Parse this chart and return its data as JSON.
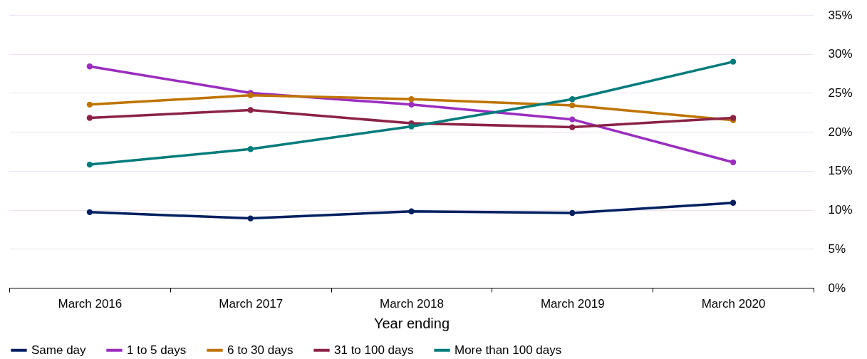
{
  "chart_data": {
    "type": "line",
    "xlabel": "Year ending",
    "categories": [
      "March 2016",
      "March 2017",
      "March 2018",
      "March 2019",
      "March 2020"
    ],
    "series": [
      {
        "name": "Same day",
        "color": "#002060",
        "values": [
          9.7,
          8.9,
          9.8,
          9.6,
          10.9
        ]
      },
      {
        "name": "1 to 5 days",
        "color": "#9b2dbf",
        "values": [
          28.4,
          25.0,
          23.5,
          21.6,
          16.1
        ]
      },
      {
        "name": "6 to 30 days",
        "color": "#bf7400",
        "values": [
          23.5,
          24.7,
          24.2,
          23.4,
          21.5
        ]
      },
      {
        "name": "31 to 100 days",
        "color": "#8b2346",
        "values": [
          21.8,
          22.8,
          21.1,
          20.6,
          21.8
        ]
      },
      {
        "name": "More than 100 days",
        "color": "#007b7b",
        "values": [
          15.8,
          17.8,
          20.7,
          24.2,
          29.0
        ]
      }
    ],
    "ylim": [
      0,
      35
    ],
    "yticks": [
      {
        "value": 0,
        "label": "0%"
      },
      {
        "value": 5,
        "label": "5%"
      },
      {
        "value": 10,
        "label": "10%"
      },
      {
        "value": 15,
        "label": "15%"
      },
      {
        "value": 20,
        "label": "20%"
      },
      {
        "value": 25,
        "label": "25%"
      },
      {
        "value": 30,
        "label": "30%"
      },
      {
        "value": 35,
        "label": "35%"
      }
    ],
    "grid": "y",
    "legend": "bottom",
    "marker": "circle",
    "line_style": "solid"
  }
}
